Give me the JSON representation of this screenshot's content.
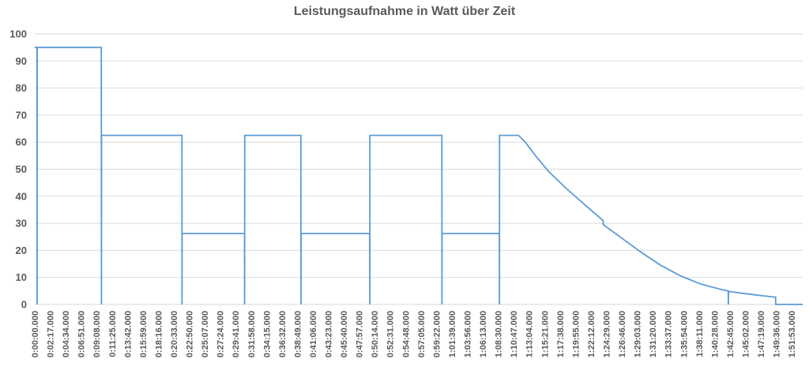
{
  "chart_data": {
    "type": "line",
    "title": "Leistungsaufnahme in Watt über Zeit",
    "xlabel": "",
    "ylabel": "",
    "ylim": [
      0,
      100
    ],
    "yticks": [
      0,
      10,
      20,
      30,
      40,
      50,
      60,
      70,
      80,
      90,
      100
    ],
    "grid": true,
    "legend": "none",
    "x_range": [
      "0:00:00.000",
      "1:53:30.000"
    ],
    "xticks": [
      "0:00:00.000",
      "0:02:17.000",
      "0:04:34.000",
      "0:06:51.000",
      "0:09:08.000",
      "0:11:25.000",
      "0:13:42.000",
      "0:15:59.000",
      "0:18:16.000",
      "0:20:33.000",
      "0:22:50.000",
      "0:25:07.000",
      "0:27:24.000",
      "0:29:41.000",
      "0:31:58.000",
      "0:34:15.000",
      "0:36:32.000",
      "0:38:49.000",
      "0:41:06.000",
      "0:43:23.000",
      "0:45:40.000",
      "0:47:57.000",
      "0:50:14.000",
      "0:52:31.000",
      "0:54:48.000",
      "0:57:05.000",
      "0:59:22.000",
      "1:01:39.000",
      "1:03:56.000",
      "1:06:13.000",
      "1:08:30.000",
      "1:10:47.000",
      "1:13:04.000",
      "1:15:21.000",
      "1:17:38.000",
      "1:19:55.000",
      "1:22:12.000",
      "1:24:29.000",
      "1:26:46.000",
      "1:29:03.000",
      "1:31:20.000",
      "1:33:37.000",
      "1:35:54.000",
      "1:38:11.000",
      "1:40:28.000",
      "1:42:45.000",
      "1:45:02.000",
      "1:47:19.000",
      "1:49:36.000",
      "1:51:53.000"
    ],
    "series": [
      {
        "name": "",
        "color": "#5b9bd5",
        "points": [
          [
            "0:00:00.000",
            95
          ],
          [
            "0:00:20.000",
            95
          ],
          [
            "0:00:21.000",
            0
          ],
          [
            "0:00:22.000",
            95
          ],
          [
            "0:09:50.000",
            95
          ],
          [
            "0:09:51.000",
            0
          ],
          [
            "0:09:52.000",
            62.5
          ],
          [
            "0:21:45.000",
            62.5
          ],
          [
            "0:21:46.000",
            0
          ],
          [
            "0:21:47.000",
            26.2
          ],
          [
            "0:31:00.000",
            26.2
          ],
          [
            "0:31:01.000",
            0
          ],
          [
            "0:31:02.000",
            62.5
          ],
          [
            "0:39:20.000",
            62.5
          ],
          [
            "0:39:21.000",
            0
          ],
          [
            "0:39:22.000",
            26.2
          ],
          [
            "0:49:30.000",
            26.2
          ],
          [
            "0:49:31.000",
            0
          ],
          [
            "0:49:32.000",
            62.5
          ],
          [
            "1:00:10.000",
            62.5
          ],
          [
            "1:00:11.000",
            0
          ],
          [
            "1:00:12.000",
            26.2
          ],
          [
            "1:08:40.000",
            26.2
          ],
          [
            "1:08:41.000",
            0
          ],
          [
            "1:08:42.000",
            62.5
          ],
          [
            "1:11:30.000",
            62.5
          ],
          [
            "1:12:30.000",
            60
          ],
          [
            "1:14:00.000",
            55
          ],
          [
            "1:16:00.000",
            49
          ],
          [
            "1:18:30.000",
            43
          ],
          [
            "1:21:00.000",
            37.5
          ],
          [
            "1:24:00.000",
            31
          ],
          [
            "1:24:01.000",
            29.5
          ],
          [
            "1:26:30.000",
            25
          ],
          [
            "1:29:30.000",
            19.5
          ],
          [
            "1:32:30.000",
            14.5
          ],
          [
            "1:35:30.000",
            10.5
          ],
          [
            "1:38:30.000",
            7.5
          ],
          [
            "1:41:30.000",
            5.5
          ],
          [
            "1:42:30.000",
            5
          ],
          [
            "1:42:31.000",
            0
          ],
          [
            "1:42:32.000",
            4.8
          ],
          [
            "1:45:00.000",
            4
          ],
          [
            "1:49:00.000",
            2.8
          ],
          [
            "1:49:30.000",
            2.7
          ],
          [
            "1:49:31.000",
            0
          ],
          [
            "1:53:30.000",
            0
          ]
        ]
      }
    ]
  }
}
